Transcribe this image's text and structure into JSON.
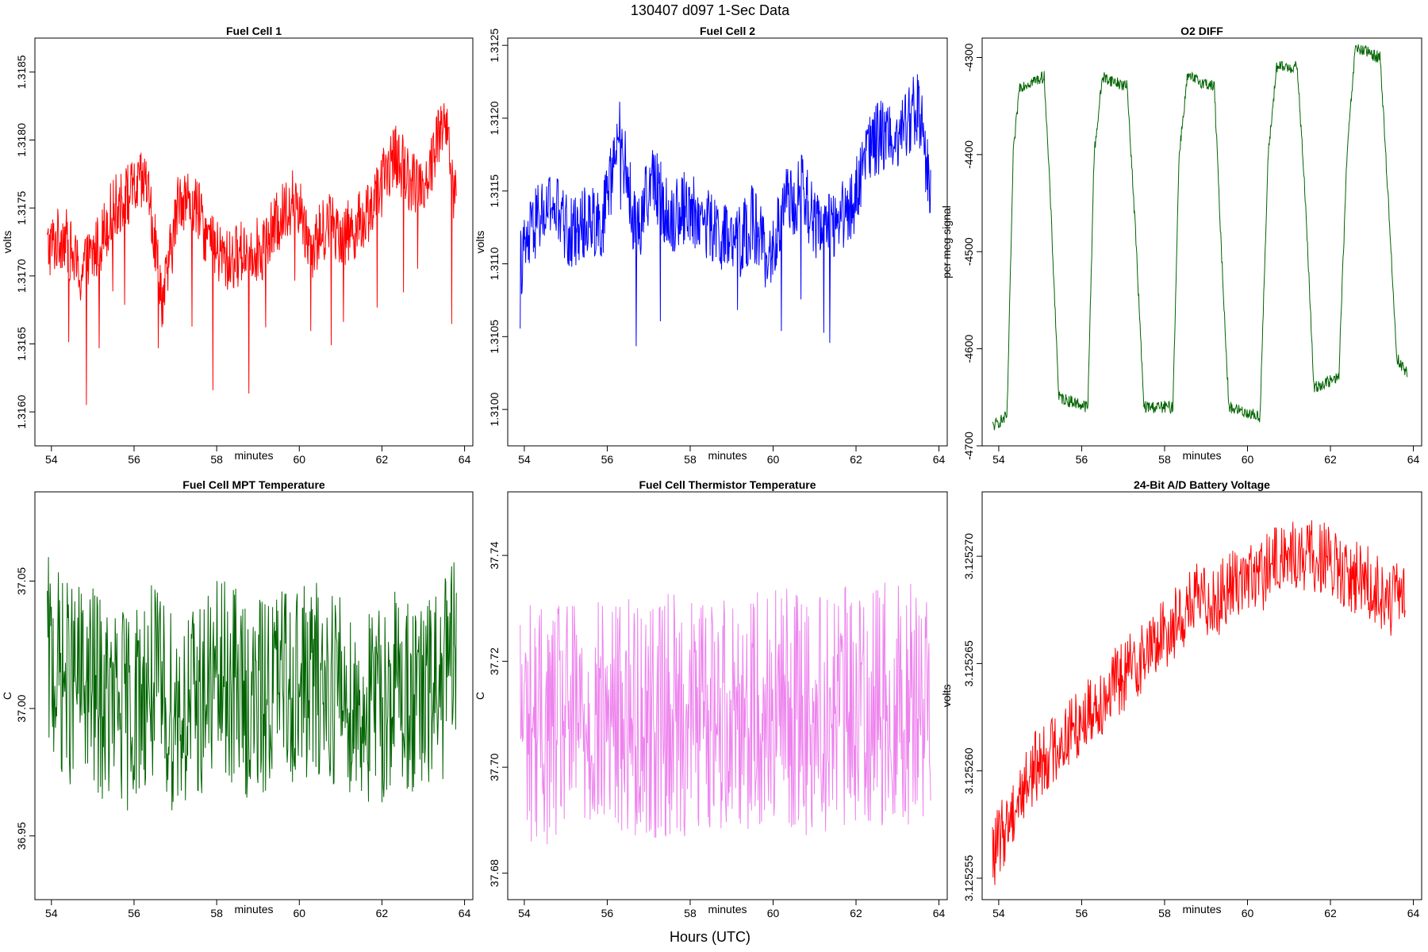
{
  "figure": {
    "title": "130407   d097   1-Sec Data",
    "xlabel": "Hours (UTC)"
  },
  "chart_data": [
    {
      "type": "line",
      "title": "Fuel Cell 1",
      "xlabel": "minutes",
      "ylabel": "volts",
      "xlim": [
        53.6,
        64.2
      ],
      "ylim": [
        1.31575,
        1.31875
      ],
      "xticks": [
        "54",
        "56",
        "58",
        "60",
        "62",
        "64"
      ],
      "yticks": [
        "1.3160",
        "1.3165",
        "1.3170",
        "1.3175",
        "1.3180",
        "1.3185"
      ],
      "color": "#ff0000",
      "series": [
        {
          "x": [
            53.9,
            54.3,
            54.7,
            55.1,
            55.5,
            55.9,
            56.3,
            56.7,
            57.1,
            57.5,
            57.9,
            58.3,
            58.7,
            59.1,
            59.5,
            59.9,
            60.3,
            60.7,
            61.1,
            61.5,
            61.9,
            62.3,
            62.7,
            63.1,
            63.5,
            63.8
          ],
          "values": [
            1.3172,
            1.3173,
            1.317,
            1.3172,
            1.3175,
            1.3176,
            1.3177,
            1.3168,
            1.3176,
            1.3175,
            1.3172,
            1.3171,
            1.3172,
            1.3172,
            1.3174,
            1.3176,
            1.3172,
            1.3174,
            1.3173,
            1.3174,
            1.3176,
            1.3179,
            1.3177,
            1.3177,
            1.3182,
            1.3175
          ]
        }
      ]
    },
    {
      "type": "line",
      "title": "Fuel Cell 2",
      "xlabel": "minutes",
      "ylabel": "volts",
      "xlim": [
        53.6,
        64.2
      ],
      "ylim": [
        1.30975,
        1.31255
      ],
      "xticks": [
        "54",
        "56",
        "58",
        "60",
        "62",
        "64"
      ],
      "yticks": [
        "1.3100",
        "1.3105",
        "1.3110",
        "1.3115",
        "1.3120",
        "1.3125"
      ],
      "color": "#0000ff",
      "series": [
        {
          "x": [
            53.9,
            54.3,
            54.7,
            55.1,
            55.5,
            55.9,
            56.3,
            56.7,
            57.1,
            57.5,
            57.9,
            58.3,
            58.7,
            59.1,
            59.5,
            59.9,
            60.3,
            60.7,
            61.1,
            61.5,
            61.9,
            62.3,
            62.7,
            63.1,
            63.5,
            63.8
          ],
          "values": [
            1.311,
            1.3113,
            1.3114,
            1.3112,
            1.3113,
            1.3113,
            1.3119,
            1.3112,
            1.3116,
            1.3113,
            1.3114,
            1.3113,
            1.3112,
            1.3111,
            1.3113,
            1.311,
            1.3114,
            1.3115,
            1.3112,
            1.3113,
            1.3114,
            1.3118,
            1.3119,
            1.3119,
            1.3121,
            1.3115
          ]
        }
      ]
    },
    {
      "type": "line",
      "title": "O2 DIFF",
      "xlabel": "minutes",
      "ylabel": "per meg signal",
      "xlim": [
        53.6,
        64.2
      ],
      "ylim": [
        -4700,
        -4280
      ],
      "xticks": [
        "54",
        "56",
        "58",
        "60",
        "62",
        "64"
      ],
      "yticks": [
        "-4700",
        "-4600",
        "-4500",
        "-4400",
        "-4300"
      ],
      "color": "#006400",
      "series": [
        {
          "x": [
            53.85,
            54.2,
            54.35,
            54.5,
            55.1,
            55.25,
            55.45,
            56.15,
            56.3,
            56.5,
            57.1,
            57.3,
            57.5,
            58.2,
            58.35,
            58.55,
            59.2,
            59.35,
            59.55,
            60.3,
            60.5,
            60.7,
            61.2,
            61.4,
            61.6,
            62.2,
            62.4,
            62.6,
            63.2,
            63.4,
            63.6,
            63.85
          ],
          "values": [
            -4680,
            -4670,
            -4400,
            -4330,
            -4320,
            -4450,
            -4650,
            -4660,
            -4400,
            -4320,
            -4330,
            -4480,
            -4660,
            -4660,
            -4400,
            -4320,
            -4330,
            -4480,
            -4660,
            -4670,
            -4400,
            -4310,
            -4310,
            -4450,
            -4640,
            -4630,
            -4400,
            -4290,
            -4300,
            -4450,
            -4610,
            -4625
          ]
        }
      ]
    },
    {
      "type": "line",
      "title": "Fuel Cell MPT Temperature",
      "xlabel": "minutes",
      "ylabel": "C",
      "xlim": [
        53.6,
        64.2
      ],
      "ylim": [
        36.925,
        37.085
      ],
      "xticks": [
        "54",
        "56",
        "58",
        "60",
        "62",
        "64"
      ],
      "yticks": [
        "36.95",
        "37.00",
        "37.05"
      ],
      "color": "#006400",
      "series": [
        {
          "x": [
            53.9,
            54.4,
            54.9,
            55.4,
            55.9,
            56.4,
            56.9,
            57.4,
            57.9,
            58.4,
            58.9,
            59.4,
            59.9,
            60.4,
            60.9,
            61.4,
            61.9,
            62.4,
            62.9,
            63.4,
            63.8
          ],
          "values": [
            37.02,
            37.01,
            37.01,
            37.0,
            37.0,
            37.01,
            37.0,
            37.0,
            37.01,
            37.01,
            37.0,
            37.01,
            37.01,
            37.01,
            37.01,
            37.0,
            37.0,
            37.01,
            37.0,
            37.01,
            37.02
          ]
        }
      ]
    },
    {
      "type": "line",
      "title": "Fuel Cell Thermistor Temperature",
      "xlabel": "minutes",
      "ylabel": "C",
      "xlim": [
        53.6,
        64.2
      ],
      "ylim": [
        37.675,
        37.752
      ],
      "xticks": [
        "54",
        "56",
        "58",
        "60",
        "62",
        "64"
      ],
      "yticks": [
        "37.68",
        "37.70",
        "37.72",
        "37.74"
      ],
      "color": "#ee82ee",
      "series": [
        {
          "x": [
            53.9,
            54.4,
            54.9,
            55.4,
            55.9,
            56.4,
            56.9,
            57.4,
            57.9,
            58.4,
            58.9,
            59.4,
            59.9,
            60.4,
            60.9,
            61.4,
            61.9,
            62.4,
            62.9,
            63.4,
            63.8
          ],
          "values": [
            37.71,
            37.708,
            37.708,
            37.709,
            37.709,
            37.71,
            37.709,
            37.71,
            37.71,
            37.71,
            37.711,
            37.711,
            37.711,
            37.711,
            37.71,
            37.711,
            37.711,
            37.712,
            37.712,
            37.712,
            37.713
          ]
        }
      ]
    },
    {
      "type": "line",
      "title": "24-Bit A/D Battery Voltage",
      "xlabel": "minutes",
      "ylabel": "volts",
      "xlim": [
        53.6,
        64.2
      ],
      "ylim": [
        3.125254,
        3.125273
      ],
      "xticks": [
        "54",
        "56",
        "58",
        "60",
        "62",
        "64"
      ],
      "yticks": [
        "3.125255",
        "3.125260",
        "3.125265",
        "3.125270"
      ],
      "color": "#ff0000",
      "series": [
        {
          "x": [
            53.85,
            54.3,
            54.8,
            55.3,
            55.8,
            56.3,
            56.8,
            57.3,
            57.8,
            58.3,
            58.8,
            59.3,
            59.8,
            60.3,
            60.8,
            61.3,
            61.8,
            62.3,
            62.8,
            63.3,
            63.8
          ],
          "values": [
            3.125256,
            3.125258,
            3.12526,
            3.125261,
            3.125262,
            3.125263,
            3.125264,
            3.125265,
            3.125266,
            3.125267,
            3.125268,
            3.125268,
            3.125269,
            3.125269,
            3.12527,
            3.12527,
            3.12527,
            3.125269,
            3.125269,
            3.125268,
            3.125268
          ]
        }
      ]
    }
  ]
}
